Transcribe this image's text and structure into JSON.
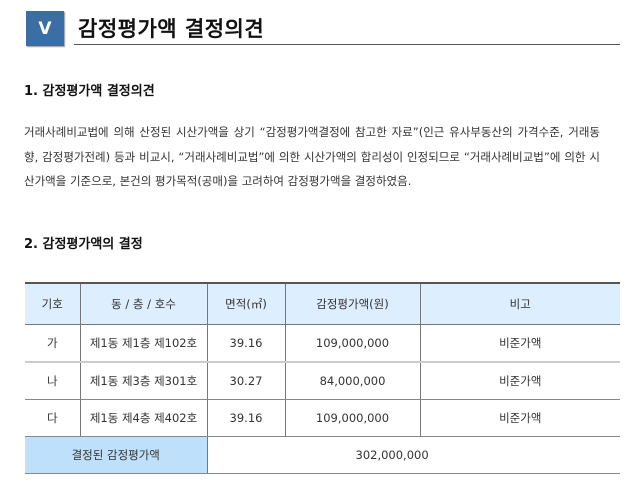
{
  "section": {
    "badge": "V",
    "title": "감정평가액 결정의견"
  },
  "heading1": "1. 감정평가액 결정의견",
  "paragraph": "거래사례비교법에 의해 산정된 시산가액을 상기 “감정평가액결정에 참고한 자료”(인근 유사부동산의 가격수준, 거래동향, 감정평가전례) 등과 비교시, “거래사례비교법”에 의한 시산가액의 합리성이 인정되므로 “거래사례비교법”에 의한 시산가액을 기준으로, 본건의 평가목적(공매)을 고려하여 감정평가액을 결정하였음.",
  "heading2": "2. 감정평가액의 결정",
  "table": {
    "headers": [
      "기호",
      "동 / 층 / 호수",
      "면적(㎡)",
      "감정평가액(원)",
      "비고"
    ],
    "rows": [
      [
        "가",
        "제1동 제1층 제102호",
        "39.16",
        "109,000,000",
        "비준가액"
      ],
      [
        "나",
        "제1동 제3층 제301호",
        "30.27",
        "84,000,000",
        "비준가액"
      ],
      [
        "다",
        "제1동 제4층 제402호",
        "39.16",
        "109,000,000",
        "비준가액"
      ]
    ],
    "total_label": "결정된 감정평가액",
    "total_value": "302,000,000"
  },
  "colors": {
    "badge": "#3a6ea5",
    "header_bg": "#ddeeff",
    "total_bg": "#bfe0fb"
  }
}
